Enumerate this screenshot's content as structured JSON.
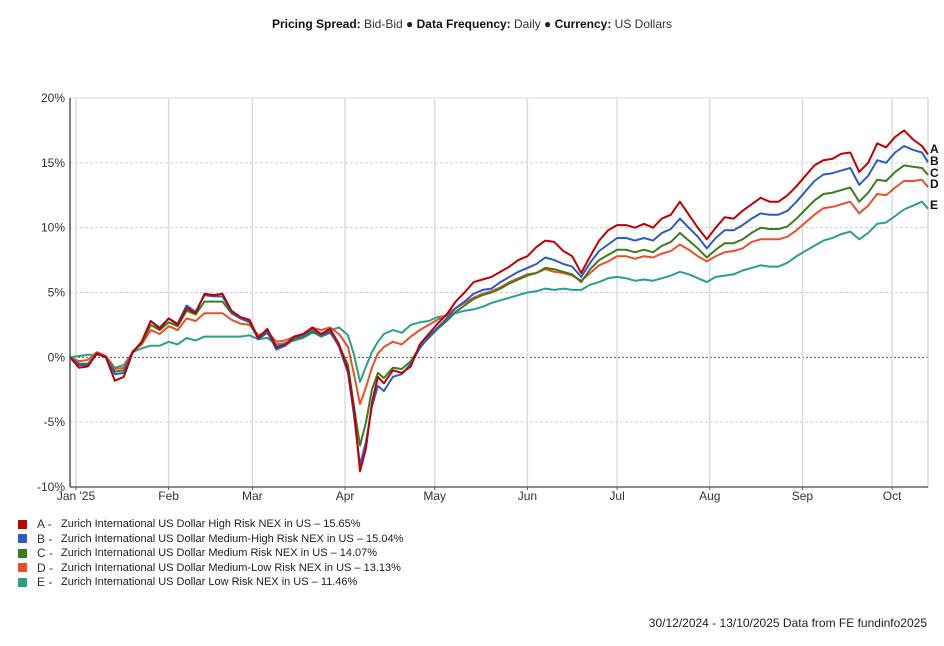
{
  "header": {
    "items": [
      {
        "key": "Pricing Spread:",
        "value": "Bid-Bid"
      },
      {
        "key": "Data Frequency:",
        "value": "Daily"
      },
      {
        "key": "Currency:",
        "value": "US Dollars"
      }
    ],
    "separator": "●"
  },
  "footer": {
    "text": "30/12/2024 - 13/10/2025 Data from FE fundinfo2025"
  },
  "chart_data": {
    "type": "line",
    "title": "",
    "xlabel": "",
    "ylabel": "",
    "x_unit": "day offset from 2024-12-30",
    "xlim": [
      0,
      287
    ],
    "ylim": [
      -10,
      20
    ],
    "grid": true,
    "zero_line": "dotted",
    "y_ticks": [
      {
        "value": 20,
        "label": "20%"
      },
      {
        "value": 15,
        "label": "15%"
      },
      {
        "value": 10,
        "label": "10%"
      },
      {
        "value": 5,
        "label": "5%"
      },
      {
        "value": 0,
        "label": "0%"
      },
      {
        "value": -5,
        "label": "-5%"
      },
      {
        "value": -10,
        "label": "-10%"
      }
    ],
    "x_ticks": [
      {
        "value": 2,
        "label": "Jan '25"
      },
      {
        "value": 33,
        "label": "Feb"
      },
      {
        "value": 61,
        "label": "Mar"
      },
      {
        "value": 92,
        "label": "Apr"
      },
      {
        "value": 122,
        "label": "May"
      },
      {
        "value": 153,
        "label": "Jun"
      },
      {
        "value": 183,
        "label": "Jul"
      },
      {
        "value": 214,
        "label": "Aug"
      },
      {
        "value": 245,
        "label": "Sep"
      },
      {
        "value": 275,
        "label": "Oct"
      }
    ],
    "legend_position": "bottom-left",
    "x": [
      0,
      3,
      6,
      9,
      12,
      15,
      18,
      21,
      24,
      27,
      30,
      33,
      36,
      39,
      42,
      45,
      48,
      51,
      54,
      57,
      60,
      63,
      66,
      69,
      72,
      75,
      78,
      81,
      84,
      87,
      90,
      93,
      95,
      97,
      99,
      101,
      103,
      105,
      108,
      111,
      114,
      117,
      120,
      123,
      126,
      129,
      132,
      135,
      138,
      141,
      144,
      147,
      150,
      153,
      156,
      159,
      162,
      165,
      168,
      171,
      174,
      177,
      180,
      183,
      186,
      189,
      192,
      195,
      198,
      201,
      204,
      207,
      210,
      213,
      216,
      219,
      222,
      225,
      228,
      231,
      234,
      237,
      240,
      243,
      246,
      249,
      252,
      255,
      258,
      261,
      264,
      267,
      270,
      273,
      276,
      279,
      282,
      285,
      287
    ],
    "series": [
      {
        "letter": "A",
        "name": "Zurich International US Dollar High Risk NEX in US",
        "final_return": "15.65%",
        "color": "#c00000",
        "values": [
          0,
          -0.8,
          -0.7,
          0.3,
          0,
          -1.8,
          -1.5,
          0.4,
          1.2,
          2.8,
          2.2,
          3.0,
          2.5,
          3.8,
          3.4,
          4.9,
          4.8,
          4.9,
          3.6,
          3.1,
          2.9,
          1.5,
          2.2,
          0.8,
          1.0,
          1.6,
          1.8,
          2.3,
          1.8,
          2.2,
          1.0,
          -1.0,
          -4.0,
          -8.8,
          -7.0,
          -3.5,
          -1.5,
          -2.0,
          -1.0,
          -1.2,
          -0.7,
          1.0,
          1.8,
          2.6,
          3.3,
          4.3,
          5.0,
          5.8,
          6.0,
          6.2,
          6.6,
          7.0,
          7.5,
          7.8,
          8.5,
          9.0,
          8.9,
          8.2,
          7.8,
          6.5,
          7.8,
          9.0,
          9.8,
          10.2,
          10.2,
          10.0,
          10.3,
          10.0,
          10.7,
          11.0,
          12.0,
          11.0,
          10.0,
          9.1,
          10.0,
          10.8,
          10.7,
          11.3,
          11.8,
          12.3,
          12.0,
          12.0,
          12.5,
          13.2,
          14.0,
          14.8,
          15.2,
          15.3,
          15.7,
          15.8,
          14.3,
          15.0,
          16.5,
          16.2,
          17.0,
          17.5,
          16.8,
          16.3,
          15.65
        ]
      },
      {
        "letter": "B",
        "name": "Zurich International US Dollar Medium-High Risk NEX in US",
        "final_return": "15.04%",
        "color": "#2a5cc8",
        "values": [
          0,
          -0.6,
          -0.6,
          0.3,
          0,
          -1.3,
          -1.2,
          0.4,
          1.2,
          2.8,
          2.3,
          3.0,
          2.6,
          4.0,
          3.5,
          4.8,
          4.7,
          4.7,
          3.5,
          3.0,
          2.8,
          1.4,
          2.0,
          0.6,
          0.9,
          1.5,
          1.7,
          2.2,
          1.7,
          2.0,
          0.8,
          -1.2,
          -4.5,
          -8.3,
          -6.5,
          -3.8,
          -2.2,
          -2.6,
          -1.5,
          -1.3,
          -0.5,
          0.7,
          1.6,
          2.3,
          3.0,
          3.8,
          4.3,
          4.9,
          5.2,
          5.3,
          5.8,
          6.2,
          6.6,
          6.9,
          7.2,
          7.7,
          7.5,
          7.2,
          7.0,
          6.2,
          7.3,
          8.2,
          8.7,
          9.2,
          9.2,
          9.0,
          9.2,
          9.0,
          9.6,
          9.9,
          10.7,
          10.0,
          9.3,
          8.4,
          9.2,
          9.8,
          9.8,
          10.2,
          10.7,
          11.1,
          11.0,
          11.0,
          11.3,
          12.0,
          12.8,
          13.6,
          14.1,
          14.2,
          14.4,
          14.6,
          13.3,
          14.0,
          15.2,
          15.0,
          15.8,
          16.3,
          16.0,
          15.8,
          15.04
        ]
      },
      {
        "letter": "C",
        "name": "Zurich International US Dollar Medium Risk NEX in US",
        "final_return": "14.07%",
        "color": "#3a7d1e",
        "values": [
          0,
          -0.5,
          -0.5,
          0.3,
          0,
          -1.1,
          -1.0,
          0.4,
          1.1,
          2.5,
          2.1,
          2.7,
          2.4,
          3.6,
          3.3,
          4.3,
          4.3,
          4.3,
          3.4,
          3.0,
          2.7,
          1.4,
          1.9,
          0.7,
          0.9,
          1.4,
          1.6,
          2.0,
          1.6,
          1.9,
          0.9,
          -0.6,
          -3.8,
          -6.8,
          -5.0,
          -2.5,
          -1.2,
          -1.6,
          -0.8,
          -0.9,
          -0.3,
          0.8,
          1.5,
          2.2,
          2.8,
          3.5,
          4.0,
          4.5,
          4.8,
          5.0,
          5.3,
          5.7,
          6.0,
          6.3,
          6.5,
          6.9,
          6.8,
          6.6,
          6.4,
          5.8,
          6.8,
          7.5,
          7.9,
          8.3,
          8.3,
          8.1,
          8.3,
          8.1,
          8.6,
          8.9,
          9.6,
          9.0,
          8.4,
          7.7,
          8.3,
          8.8,
          8.8,
          9.1,
          9.6,
          10.0,
          9.9,
          9.9,
          10.1,
          10.7,
          11.4,
          12.1,
          12.6,
          12.7,
          12.9,
          13.1,
          12.0,
          12.7,
          13.7,
          13.6,
          14.3,
          14.8,
          14.7,
          14.6,
          14.07
        ]
      },
      {
        "letter": "D",
        "name": "Zurich International US Dollar Medium-Low Risk NEX in US",
        "final_return": "13.13%",
        "color": "#e8502a",
        "values": [
          0,
          -0.3,
          -0.2,
          0.4,
          0.1,
          -0.9,
          -0.8,
          0.5,
          1.0,
          2.1,
          1.8,
          2.4,
          2.1,
          3.0,
          2.8,
          3.4,
          3.4,
          3.4,
          2.9,
          2.6,
          2.5,
          1.7,
          2.0,
          1.2,
          1.3,
          1.6,
          1.8,
          2.3,
          2.1,
          2.3,
          1.8,
          0.8,
          -1.3,
          -3.6,
          -2.3,
          -0.8,
          0.3,
          0.8,
          1.2,
          1.0,
          1.6,
          2.1,
          2.5,
          2.9,
          3.3,
          3.8,
          4.2,
          4.6,
          4.9,
          5.1,
          5.4,
          5.8,
          6.1,
          6.4,
          6.5,
          6.8,
          6.6,
          6.5,
          6.3,
          5.9,
          6.5,
          7.1,
          7.4,
          7.8,
          7.8,
          7.6,
          7.8,
          7.7,
          8.0,
          8.2,
          8.7,
          8.3,
          7.8,
          7.4,
          7.8,
          8.1,
          8.2,
          8.4,
          8.9,
          9.1,
          9.1,
          9.1,
          9.3,
          9.8,
          10.4,
          11.0,
          11.5,
          11.6,
          11.8,
          12.0,
          11.1,
          11.7,
          12.6,
          12.5,
          13.1,
          13.6,
          13.6,
          13.7,
          13.13
        ]
      },
      {
        "letter": "E",
        "name": "Zurich International US Dollar Low Risk NEX in US",
        "final_return": "11.46%",
        "color": "#2aa08c",
        "values": [
          0,
          0.1,
          0.2,
          0.2,
          0.1,
          -0.8,
          -0.6,
          0.4,
          0.7,
          0.9,
          0.9,
          1.2,
          1.0,
          1.5,
          1.3,
          1.6,
          1.6,
          1.6,
          1.6,
          1.6,
          1.7,
          1.4,
          1.5,
          1.0,
          1.1,
          1.3,
          1.5,
          1.9,
          1.8,
          2.1,
          2.3,
          1.7,
          0.2,
          -1.9,
          -0.7,
          0.4,
          1.2,
          1.8,
          2.1,
          1.9,
          2.5,
          2.7,
          2.8,
          3.1,
          3.2,
          3.4,
          3.6,
          3.7,
          3.9,
          4.2,
          4.4,
          4.6,
          4.8,
          5.0,
          5.1,
          5.3,
          5.2,
          5.3,
          5.2,
          5.2,
          5.6,
          5.8,
          6.1,
          6.2,
          6.1,
          5.9,
          6.0,
          5.9,
          6.1,
          6.3,
          6.6,
          6.4,
          6.1,
          5.8,
          6.2,
          6.3,
          6.4,
          6.7,
          6.9,
          7.1,
          7.0,
          7.0,
          7.3,
          7.8,
          8.2,
          8.6,
          9.0,
          9.2,
          9.5,
          9.7,
          9.1,
          9.6,
          10.3,
          10.4,
          10.9,
          11.4,
          11.7,
          12.0,
          11.46
        ]
      }
    ]
  }
}
